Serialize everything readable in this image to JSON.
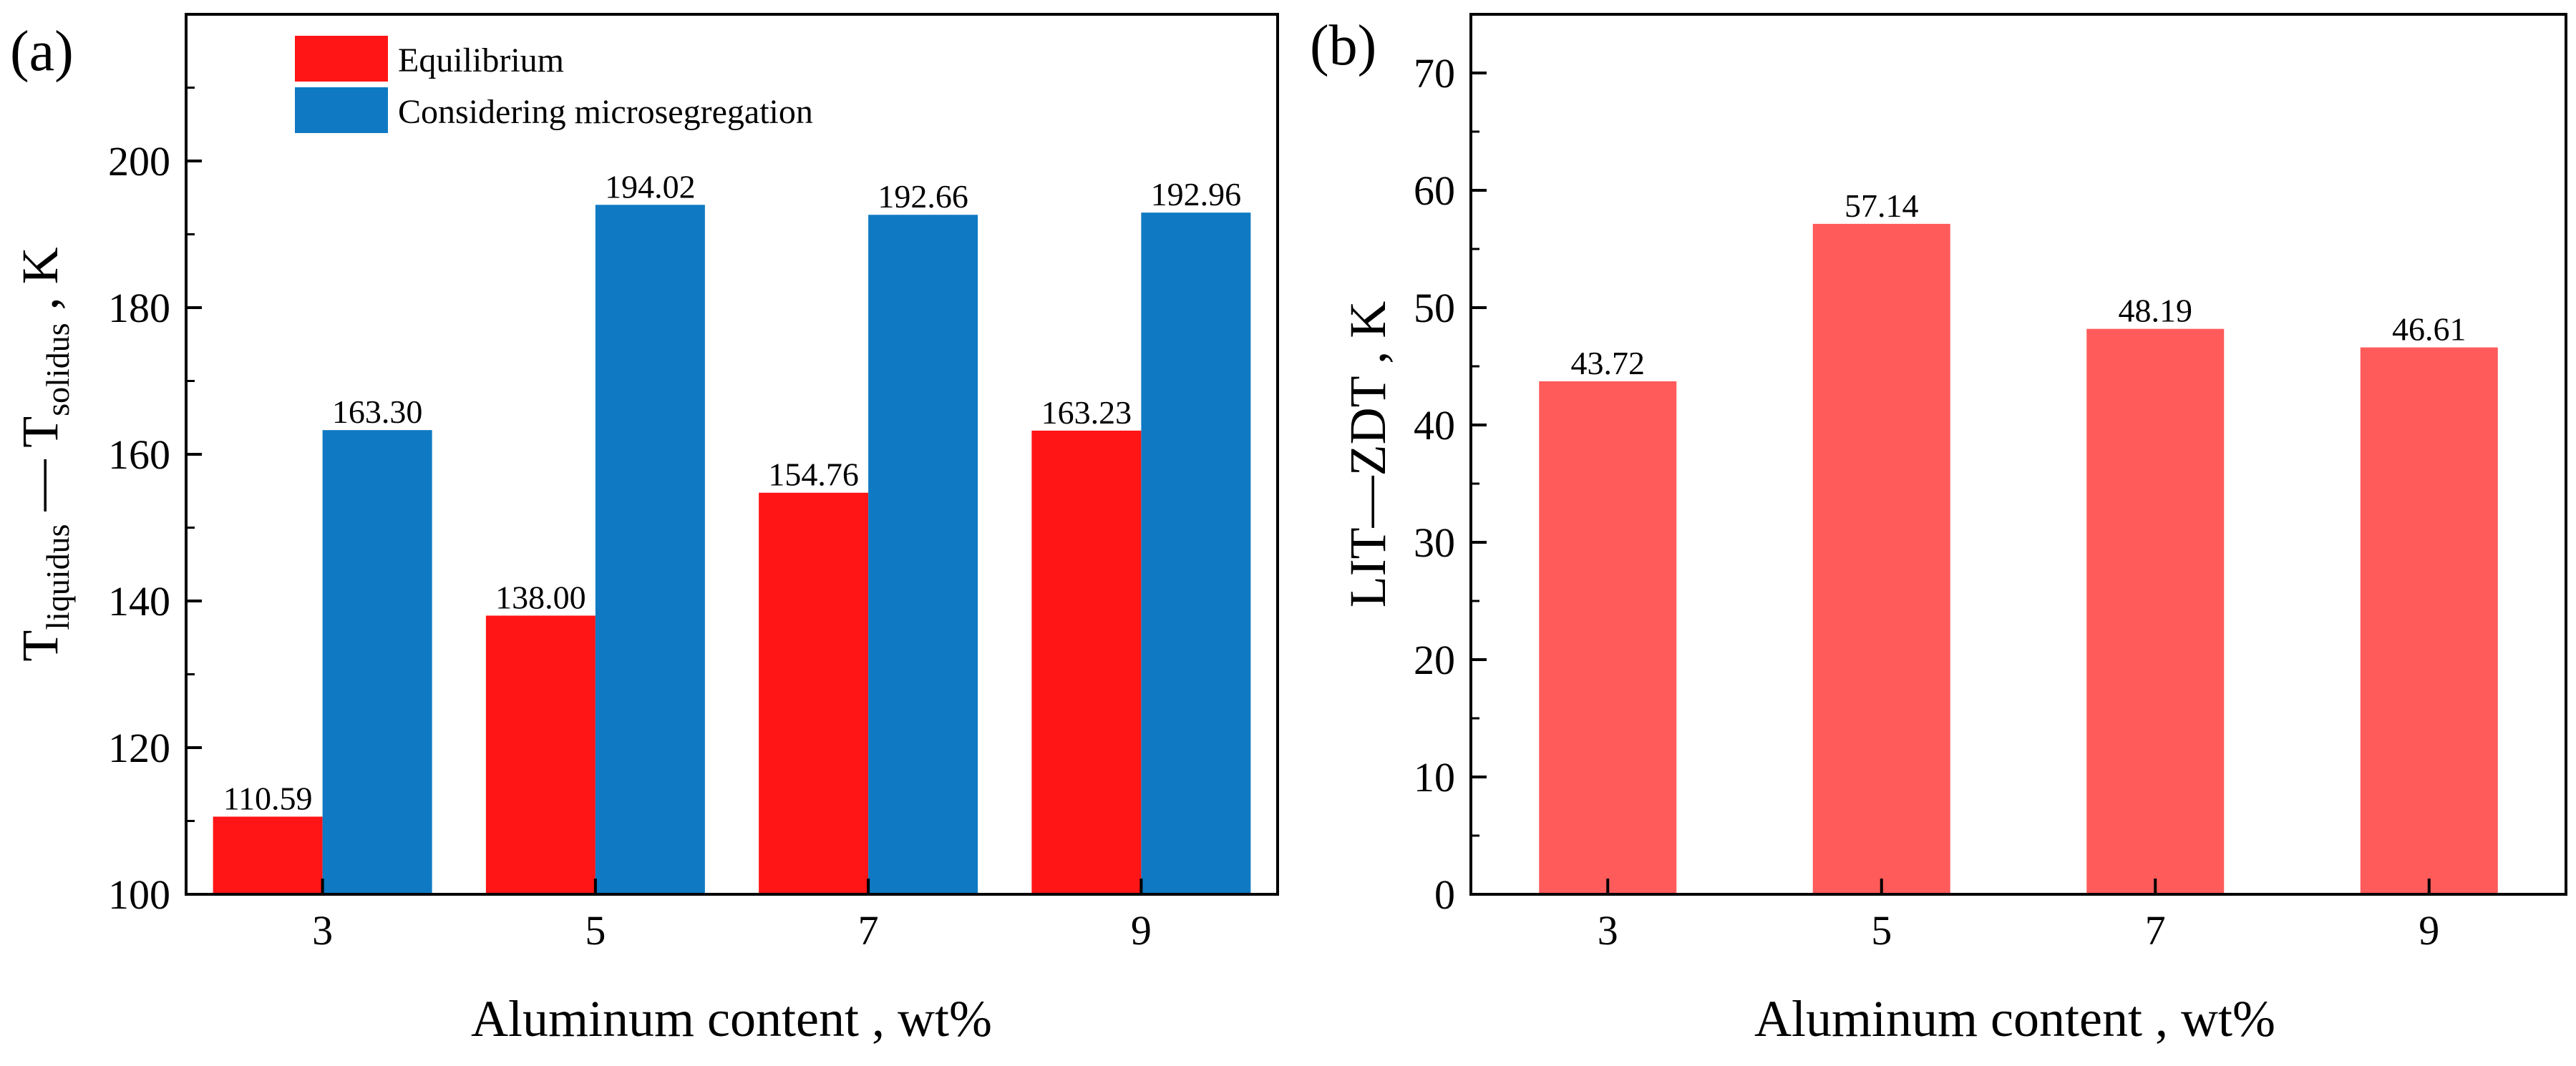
{
  "colors": {
    "equilibrium": "#ff1515",
    "microsegregation": "#0f7ac3",
    "single": "#ff5b5b",
    "axis": "#000000"
  },
  "chart_data": [
    {
      "panel": "(a)",
      "type": "bar",
      "categories": [
        "3",
        "5",
        "7",
        "9"
      ],
      "series": [
        {
          "name": "Equilibrium",
          "values": [
            110.59,
            138.0,
            154.76,
            163.23
          ],
          "labels": [
            "110.59",
            "138.00",
            "154.76",
            "163.23"
          ]
        },
        {
          "name": "Considering microsegregation",
          "values": [
            163.3,
            194.02,
            192.66,
            192.96
          ],
          "labels": [
            "163.30",
            "194.02",
            "192.66",
            "192.96"
          ]
        }
      ],
      "ylim": [
        100,
        220
      ],
      "yticks": [
        "100",
        "120",
        "140",
        "160",
        "180",
        "200"
      ],
      "ytick_values": [
        100,
        120,
        140,
        160,
        180,
        200
      ],
      "xlabel": "Aluminum content , wt%",
      "ylabel": {
        "t1": "T",
        "sub1": "liquidus",
        "mid": " — T",
        "sub2": "solidus",
        "end": " , K"
      },
      "legend_position": "top-left"
    },
    {
      "panel": "(b)",
      "type": "bar",
      "categories": [
        "3",
        "5",
        "7",
        "9"
      ],
      "values": [
        43.72,
        57.14,
        48.19,
        46.61
      ],
      "labels": [
        "43.72",
        "57.14",
        "48.19",
        "46.61"
      ],
      "ylim": [
        0,
        75
      ],
      "yticks": [
        "0",
        "10",
        "20",
        "30",
        "40",
        "50",
        "60",
        "70"
      ],
      "ytick_values": [
        0,
        10,
        20,
        30,
        40,
        50,
        60,
        70
      ],
      "xlabel": "Aluminum content , wt%",
      "ylabel": "LIT—ZDT , K"
    }
  ]
}
